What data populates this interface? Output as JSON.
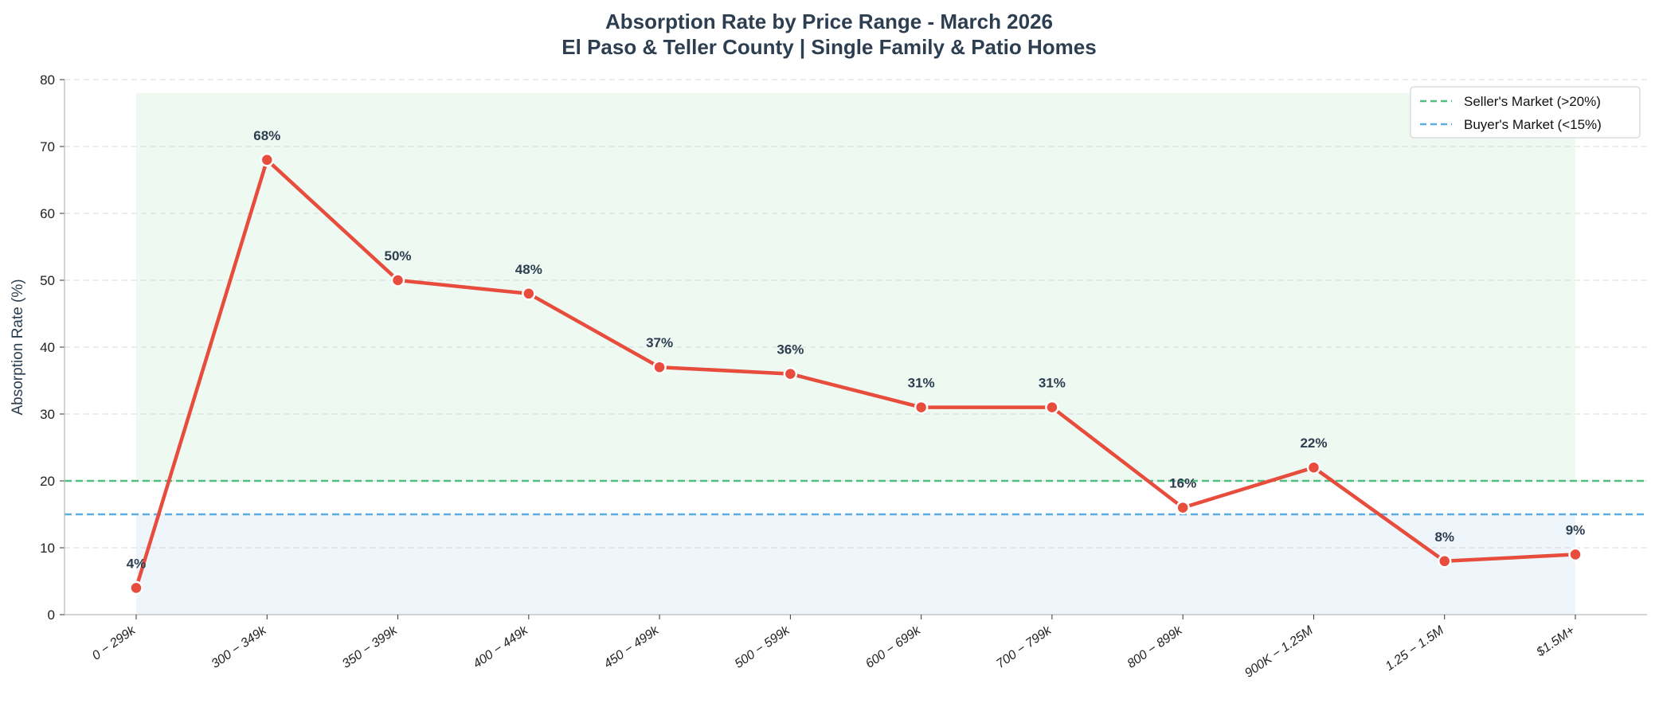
{
  "chart_data": {
    "type": "line",
    "title": "Absorption Rate by Price Range - March 2026",
    "subtitle": "El Paso & Teller County | Single Family & Patio Homes",
    "xlabel": "",
    "ylabel": "Absorption Rate (%)",
    "ylim": [
      0,
      80
    ],
    "yticks": [
      0,
      10,
      20,
      30,
      40,
      50,
      60,
      70,
      80
    ],
    "grid": "y dashed",
    "legend_position": "top-right",
    "categories": [
      "0 − 299k",
      "300 − 349k",
      "350 − 399k",
      "400 − 449k",
      "450 − 499k",
      "500 − 599k",
      "600 − 699k",
      "700 − 799k",
      "800 − 899k",
      "900K − 1.25M",
      "1.25 − 1.5M",
      "$1.5M+"
    ],
    "values": [
      4,
      68,
      50,
      48,
      37,
      36,
      31,
      31,
      16,
      22,
      8,
      9
    ],
    "data_labels": [
      "4%",
      "68%",
      "50%",
      "48%",
      "37%",
      "36%",
      "31%",
      "31%",
      "16%",
      "22%",
      "8%",
      "9%"
    ],
    "line_color": "#e74c3c",
    "reference_lines": [
      {
        "name": "Seller's Market (>20%)",
        "y": 20,
        "color": "#52be80"
      },
      {
        "name": "Buyer's Market (<15%)",
        "y": 15,
        "color": "#5dade2"
      }
    ],
    "shaded_regions": [
      {
        "y_range": [
          20,
          78
        ],
        "color": "#eaf7ef"
      },
      {
        "y_range": [
          0,
          15
        ],
        "color": "#eaf2fa"
      }
    ]
  }
}
